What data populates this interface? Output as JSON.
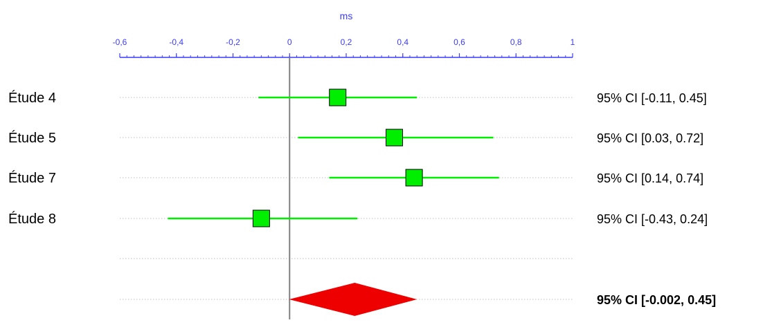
{
  "chart_data": {
    "type": "forest",
    "axis_title": "ms",
    "xlim": [
      -0.6,
      1
    ],
    "ticks": [
      {
        "value": -0.6,
        "label": "-0,6"
      },
      {
        "value": -0.4,
        "label": "-0,4"
      },
      {
        "value": -0.2,
        "label": "-0,2"
      },
      {
        "value": 0,
        "label": "0"
      },
      {
        "value": 0.2,
        "label": "0,2"
      },
      {
        "value": 0.4,
        "label": "0,4"
      },
      {
        "value": 0.6,
        "label": "0,6"
      },
      {
        "value": 0.8,
        "label": "0,8"
      },
      {
        "value": 1,
        "label": "1"
      }
    ],
    "studies": [
      {
        "label": "Étude 4",
        "estimate": 0.17,
        "ci_low": -0.11,
        "ci_high": 0.45,
        "ci_text": "95% CI [-0.11, 0.45]"
      },
      {
        "label": "Étude 5",
        "estimate": 0.37,
        "ci_low": 0.03,
        "ci_high": 0.72,
        "ci_text": "95% CI [0.03, 0.72]"
      },
      {
        "label": "Étude 7",
        "estimate": 0.44,
        "ci_low": 0.14,
        "ci_high": 0.74,
        "ci_text": "95% CI [0.14, 0.74]"
      },
      {
        "label": "Étude 8",
        "estimate": -0.1,
        "ci_low": -0.43,
        "ci_high": 0.24,
        "ci_text": "95% CI [-0.43, 0.24]"
      }
    ],
    "summary": {
      "estimate": 0.23,
      "ci_low": -0.002,
      "ci_high": 0.45,
      "ci_text": "95% CI [-0.002, 0.45]"
    },
    "colors": {
      "axis": "#3a3aff",
      "ci_line": "#00ee00",
      "marker_fill": "#00ee00",
      "marker_stroke": "#000000",
      "summary_fill": "#ee0000",
      "guide_line": "#bfbfbf",
      "zero_line": "#808080"
    }
  }
}
